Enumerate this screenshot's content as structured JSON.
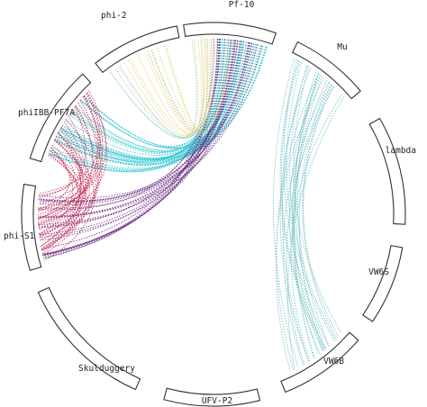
{
  "diagram": {
    "type": "chord",
    "segments": [
      {
        "id": "pf10",
        "label": "Pf-10"
      },
      {
        "id": "mu",
        "label": "Mu"
      },
      {
        "id": "lambda",
        "label": "lambda"
      },
      {
        "id": "vw6s",
        "label": "VW6S"
      },
      {
        "id": "vw6b",
        "label": "VW6B"
      },
      {
        "id": "ufvp2",
        "label": "UFV-P2"
      },
      {
        "id": "skulduggery",
        "label": "Skulduggery"
      },
      {
        "id": "phis1",
        "label": "phi-S1"
      },
      {
        "id": "phi18b",
        "label": "phiIBB-PF7A"
      },
      {
        "id": "phi2",
        "label": "phi-2"
      }
    ],
    "link_groups": [
      {
        "from": "pf10",
        "to": "phi18b",
        "count": 38,
        "color": "#27c3cf"
      },
      {
        "from": "pf10",
        "to": "phis1",
        "count": 26,
        "color": "#6a2c80"
      },
      {
        "from": "phi18b",
        "to": "phis1",
        "count": 32,
        "color": "#c4264f"
      },
      {
        "from": "phi2",
        "to": "pf10",
        "count": 12,
        "color": "#e2cb74"
      },
      {
        "from": "phi2",
        "to": "pf10",
        "count": 5,
        "color": "#8fc9bf"
      },
      {
        "from": "mu",
        "to": "vw6b",
        "count": 26,
        "color": "#6cbcc0"
      }
    ]
  }
}
